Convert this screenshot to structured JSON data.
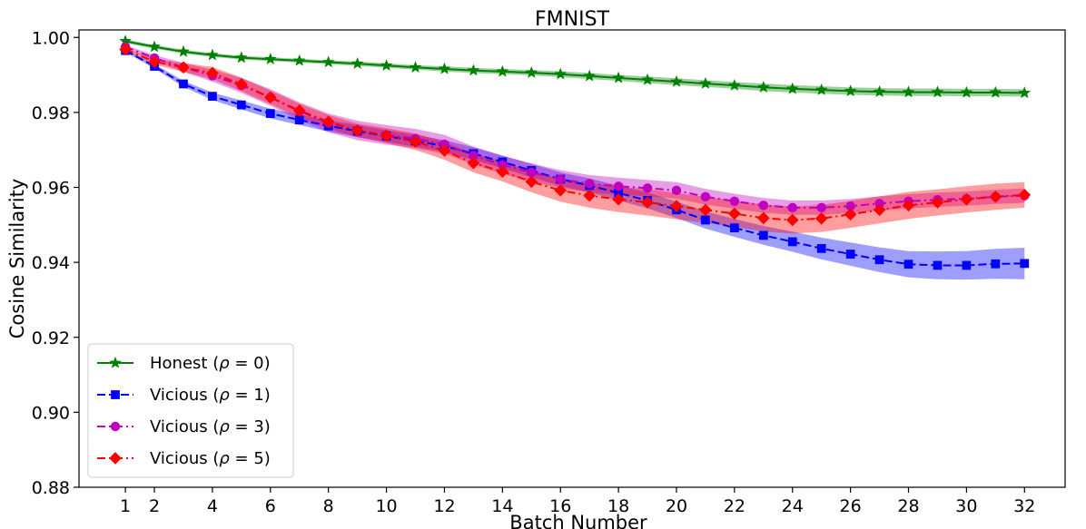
{
  "chart_data": {
    "type": "line",
    "title": "FMNIST",
    "xlabel": "Batch Number",
    "ylabel": "Cosine Similarity",
    "xlim": [
      -0.6,
      33.4
    ],
    "ylim": [
      0.88,
      1.002
    ],
    "xticks": [
      1,
      2,
      4,
      6,
      8,
      10,
      12,
      14,
      16,
      18,
      20,
      22,
      24,
      26,
      28,
      30,
      32
    ],
    "yticks": [
      0.88,
      0.9,
      0.92,
      0.94,
      0.96,
      0.98,
      1.0
    ],
    "ytick_labels": [
      "0.88",
      "0.90",
      "0.92",
      "0.94",
      "0.96",
      "0.98",
      "1.00"
    ],
    "grid": false,
    "legend_position": "lower-left",
    "x": [
      1,
      2,
      3,
      4,
      5,
      6,
      7,
      8,
      9,
      10,
      11,
      12,
      13,
      14,
      15,
      16,
      17,
      18,
      19,
      20,
      21,
      22,
      23,
      24,
      25,
      26,
      27,
      28,
      29,
      30,
      31,
      32
    ],
    "series": [
      {
        "name": "Honest (ρ = 0)",
        "name_plain": "Honest (",
        "rho": "0",
        "color": "#008000",
        "marker": "star",
        "linestyle": "solid",
        "values": [
          0.999,
          0.9975,
          0.9962,
          0.9953,
          0.9946,
          0.9942,
          0.9938,
          0.9934,
          0.993,
          0.9925,
          0.992,
          0.9916,
          0.9912,
          0.9909,
          0.9906,
          0.9902,
          0.9897,
          0.9892,
          0.9887,
          0.9882,
          0.9877,
          0.9872,
          0.9867,
          0.9863,
          0.986,
          0.9857,
          0.9855,
          0.9854,
          0.9854,
          0.9853,
          0.9853,
          0.9852
        ],
        "band": [
          0.0005,
          0.0005,
          0.0005,
          0.0005,
          0.0005,
          0.0005,
          0.0005,
          0.0005,
          0.0006,
          0.0006,
          0.0006,
          0.0007,
          0.0007,
          0.0007,
          0.0007,
          0.0008,
          0.0008,
          0.0008,
          0.0009,
          0.0009,
          0.0009,
          0.0009,
          0.001,
          0.001,
          0.001,
          0.001,
          0.001,
          0.001,
          0.001,
          0.001,
          0.001,
          0.001
        ]
      },
      {
        "name": "Vicious (ρ = 1)",
        "name_plain": "Vicious (",
        "rho": "1",
        "color": "#0000ff",
        "marker": "square",
        "linestyle": "dashed",
        "values": [
          0.9965,
          0.9923,
          0.9876,
          0.9843,
          0.982,
          0.9797,
          0.978,
          0.9764,
          0.975,
          0.9737,
          0.9724,
          0.971,
          0.969,
          0.9668,
          0.9645,
          0.9622,
          0.9605,
          0.9585,
          0.9565,
          0.954,
          0.9513,
          0.9492,
          0.9472,
          0.9455,
          0.9437,
          0.9422,
          0.9407,
          0.9395,
          0.9392,
          0.9392,
          0.9396,
          0.9397
        ],
        "band": [
          0.0004,
          0.0006,
          0.0008,
          0.001,
          0.0012,
          0.0013,
          0.0014,
          0.0015,
          0.0016,
          0.0016,
          0.0016,
          0.0016,
          0.0017,
          0.0017,
          0.0018,
          0.0018,
          0.0019,
          0.002,
          0.0021,
          0.0022,
          0.0023,
          0.0024,
          0.0025,
          0.0027,
          0.0029,
          0.0031,
          0.0033,
          0.0035,
          0.0037,
          0.0038,
          0.004,
          0.0042
        ]
      },
      {
        "name": "Vicious (ρ = 3)",
        "name_plain": "Vicious (",
        "rho": "3",
        "color": "#bf00bf",
        "marker": "circle",
        "linestyle": "dashdot",
        "values": [
          0.9975,
          0.9945,
          0.992,
          0.9898,
          0.9872,
          0.984,
          0.9803,
          0.9772,
          0.9752,
          0.974,
          0.973,
          0.9715,
          0.9685,
          0.966,
          0.964,
          0.9622,
          0.961,
          0.9603,
          0.9598,
          0.9592,
          0.9575,
          0.9563,
          0.9552,
          0.9546,
          0.9546,
          0.955,
          0.9557,
          0.9563,
          0.9567,
          0.957,
          0.9575,
          0.9578
        ],
        "band": [
          0.0004,
          0.0008,
          0.0012,
          0.0016,
          0.002,
          0.0022,
          0.0024,
          0.0025,
          0.0026,
          0.0026,
          0.0026,
          0.0025,
          0.0024,
          0.0024,
          0.0024,
          0.0024,
          0.0023,
          0.0023,
          0.0022,
          0.0022,
          0.0021,
          0.002,
          0.002,
          0.0019,
          0.0019,
          0.0019,
          0.0019,
          0.0019,
          0.0019,
          0.0019,
          0.0019,
          0.0019
        ]
      },
      {
        "name": "Vicious (ρ = 5)",
        "name_plain": "Vicious (",
        "rho": "5",
        "color": "#ff0000",
        "marker": "diamond",
        "linestyle": "dashdot",
        "values": [
          0.9968,
          0.9935,
          0.992,
          0.9905,
          0.9875,
          0.984,
          0.9805,
          0.9775,
          0.9752,
          0.9738,
          0.9722,
          0.9698,
          0.9665,
          0.9642,
          0.9615,
          0.9592,
          0.9578,
          0.9568,
          0.956,
          0.955,
          0.954,
          0.953,
          0.9518,
          0.9513,
          0.9517,
          0.9528,
          0.954,
          0.9552,
          0.956,
          0.9568,
          0.9575,
          0.958
        ],
        "band": [
          0.0004,
          0.0008,
          0.0012,
          0.0016,
          0.0018,
          0.0018,
          0.0018,
          0.0018,
          0.0018,
          0.002,
          0.0022,
          0.0024,
          0.0025,
          0.0026,
          0.0028,
          0.003,
          0.0032,
          0.0034,
          0.0035,
          0.0035,
          0.0035,
          0.0035,
          0.0036,
          0.0036,
          0.0036,
          0.0036,
          0.0036,
          0.0036,
          0.0035,
          0.0035,
          0.0035,
          0.0034
        ]
      }
    ]
  }
}
